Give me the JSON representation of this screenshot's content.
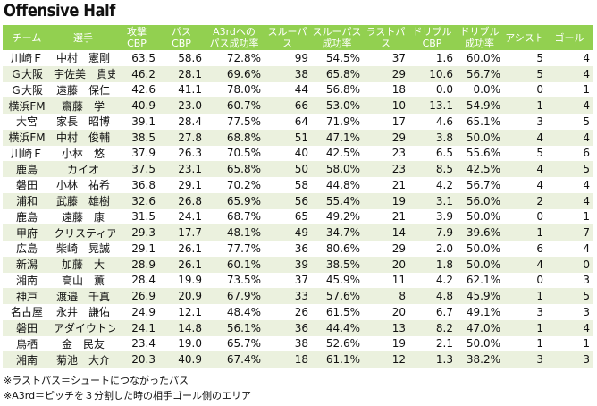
{
  "title": "Offensive Half",
  "columns": [
    "チーム",
    "選手",
    "攻撃\nCBP",
    "パス\nCBP",
    "A3rdへの\nパス成功率",
    "スルーパス",
    "スルーパス\n成功率",
    "ラストパス",
    "ドリブル\nCBP",
    "ドリブル\n成功率",
    "アシスト",
    "ゴール"
  ],
  "rows": [
    [
      "川崎Ｆ",
      "中村　憲剛",
      "63.5",
      "58.6",
      "72.8%",
      "99",
      "54.5%",
      "37",
      "1.6",
      "60.0%",
      "5",
      "4"
    ],
    [
      "Ｇ大阪",
      "宇佐美　貴史",
      "46.2",
      "28.1",
      "69.6%",
      "38",
      "65.8%",
      "29",
      "10.6",
      "56.7%",
      "5",
      "4"
    ],
    [
      "Ｇ大阪",
      "遠藤　保仁",
      "42.6",
      "41.1",
      "78.0%",
      "44",
      "56.8%",
      "18",
      "0.0",
      "0.0%",
      "0",
      "1"
    ],
    [
      "横浜FM",
      "齋藤　学",
      "40.9",
      "23.0",
      "60.7%",
      "66",
      "53.0%",
      "10",
      "13.1",
      "54.9%",
      "1",
      "4"
    ],
    [
      "大宮",
      "家長　昭博",
      "39.1",
      "28.4",
      "77.5%",
      "64",
      "71.9%",
      "17",
      "4.6",
      "65.1%",
      "3",
      "5"
    ],
    [
      "横浜FM",
      "中村　俊輔",
      "38.5",
      "27.8",
      "68.8%",
      "51",
      "47.1%",
      "29",
      "3.8",
      "50.0%",
      "4",
      "4"
    ],
    [
      "川崎Ｆ",
      "小林　悠",
      "37.9",
      "26.3",
      "70.5%",
      "40",
      "42.5%",
      "23",
      "6.5",
      "55.6%",
      "5",
      "6"
    ],
    [
      "鹿島",
      "カイオ",
      "37.5",
      "23.1",
      "65.8%",
      "50",
      "58.0%",
      "23",
      "8.5",
      "42.5%",
      "4",
      "5"
    ],
    [
      "磐田",
      "小林　祐希",
      "36.8",
      "29.1",
      "70.2%",
      "58",
      "44.8%",
      "21",
      "4.2",
      "56.7%",
      "4",
      "4"
    ],
    [
      "浦和",
      "武藤　雄樹",
      "32.6",
      "26.8",
      "65.9%",
      "56",
      "55.4%",
      "19",
      "3.1",
      "56.0%",
      "2",
      "4"
    ],
    [
      "鹿島",
      "遠藤　康",
      "31.5",
      "24.1",
      "68.7%",
      "65",
      "49.2%",
      "21",
      "3.9",
      "50.0%",
      "0",
      "1"
    ],
    [
      "甲府",
      "クリスティアーノ",
      "29.3",
      "17.7",
      "48.1%",
      "49",
      "34.7%",
      "14",
      "7.9",
      "39.6%",
      "1",
      "7"
    ],
    [
      "広島",
      "柴崎　晃誠",
      "29.1",
      "26.1",
      "77.7%",
      "36",
      "80.6%",
      "29",
      "2.0",
      "50.0%",
      "6",
      "4"
    ],
    [
      "新潟",
      "加藤　大",
      "28.9",
      "26.1",
      "60.1%",
      "39",
      "38.5%",
      "20",
      "1.8",
      "50.0%",
      "4",
      "0"
    ],
    [
      "湘南",
      "高山　薫",
      "28.4",
      "19.9",
      "73.5%",
      "37",
      "45.9%",
      "11",
      "4.2",
      "62.1%",
      "0",
      "3"
    ],
    [
      "神戸",
      "渡邉　千真",
      "26.9",
      "20.9",
      "67.9%",
      "33",
      "57.6%",
      "8",
      "4.8",
      "45.9%",
      "1",
      "5"
    ],
    [
      "名古屋",
      "永井　謙佑",
      "24.9",
      "12.1",
      "48.4%",
      "26",
      "61.5%",
      "20",
      "6.7",
      "49.1%",
      "3",
      "3"
    ],
    [
      "磐田",
      "アダイウトン",
      "24.1",
      "14.8",
      "56.1%",
      "36",
      "44.4%",
      "13",
      "8.2",
      "47.0%",
      "1",
      "4"
    ],
    [
      "鳥栖",
      "金　民友",
      "23.4",
      "19.0",
      "65.7%",
      "38",
      "52.6%",
      "19",
      "2.1",
      "50.0%",
      "1",
      "1"
    ],
    [
      "湘南",
      "菊池　大介",
      "20.3",
      "40.9",
      "67.4%",
      "18",
      "61.1%",
      "12",
      "1.3",
      "38.2%",
      "3",
      "3"
    ]
  ],
  "notes": [
    "※ラストパス＝シュートにつながったパス",
    "※A3rd＝ピッチを３分割した時の相手ゴール側のエリア"
  ]
}
